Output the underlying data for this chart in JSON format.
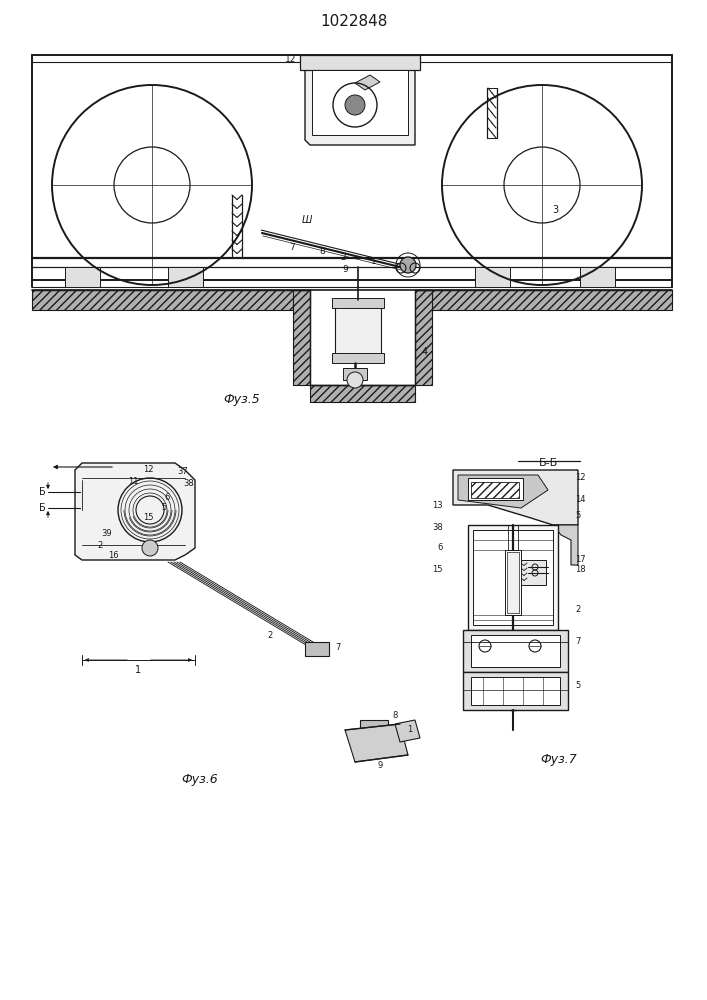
{
  "title": "1022848",
  "bg": "#ffffff",
  "lc": "#1a1a1a",
  "fig5_label": "Фуз.5",
  "fig6_label": "Фуз.6",
  "fig7_label": "Фуз.7",
  "bb_label": "Б-Б"
}
